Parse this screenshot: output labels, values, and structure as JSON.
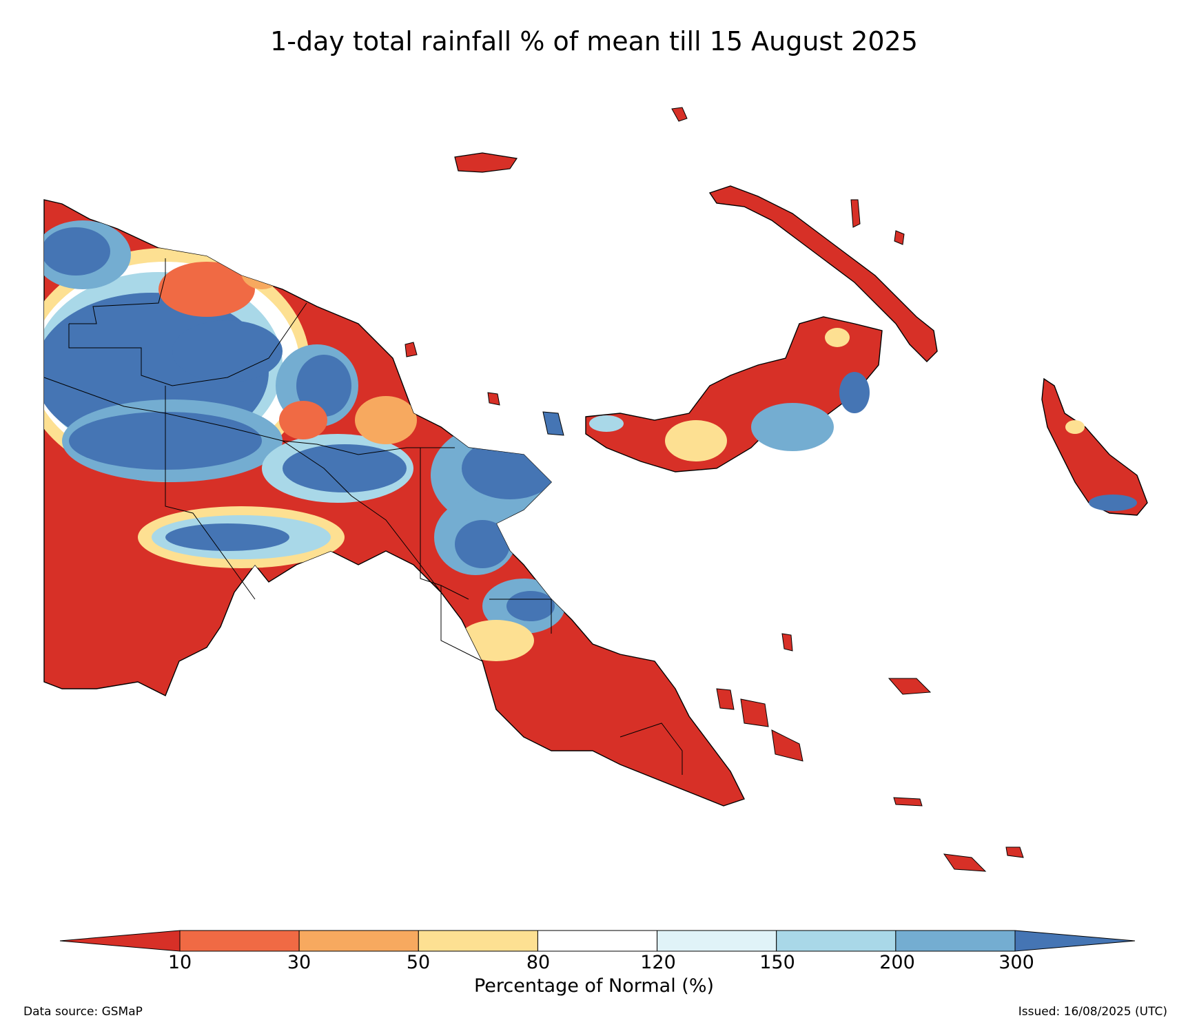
{
  "title": "1-day total rainfall % of mean till 15 August 2025",
  "colorbar": {
    "label": "Percentage of Normal (%)",
    "ticks": [
      "10",
      "30",
      "50",
      "80",
      "120",
      "150",
      "200",
      "300"
    ],
    "bins": [
      {
        "range": "<10",
        "color": "#d73027"
      },
      {
        "range": "10-30",
        "color": "#f06a44"
      },
      {
        "range": "30-50",
        "color": "#f7a95f"
      },
      {
        "range": "50-80",
        "color": "#fde092"
      },
      {
        "range": "80-120",
        "color": "#ffffff"
      },
      {
        "range": "120-150",
        "color": "#e0f3f8"
      },
      {
        "range": "150-200",
        "color": "#a9d8e8"
      },
      {
        "range": "200-300",
        "color": "#74add1"
      },
      {
        "range": ">300",
        "color": "#4575b4"
      }
    ]
  },
  "footer": {
    "source": "Data source: GSMaP",
    "issued": "Issued: 16/08/2025 (UTC)"
  }
}
